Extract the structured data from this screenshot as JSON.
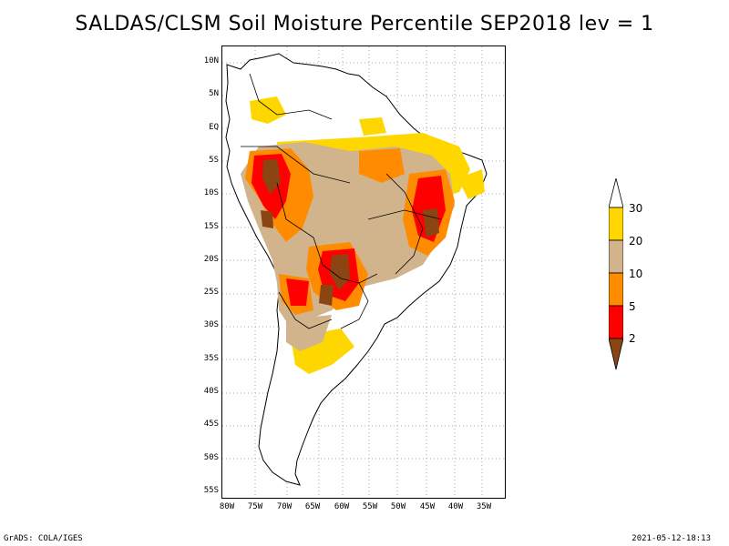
{
  "title": "SALDAS/CLSM Soil Moisture Percentile SEP2018 lev = 1",
  "footer": {
    "left": "GrADS: COLA/IGES",
    "right": "2021-05-12-18:13"
  },
  "map": {
    "lat_labels": [
      "10N",
      "5N",
      "EQ",
      "5S",
      "10S",
      "15S",
      "20S",
      "25S",
      "30S",
      "35S",
      "40S",
      "45S",
      "50S",
      "55S"
    ],
    "lon_labels": [
      "80W",
      "75W",
      "70W",
      "65W",
      "60W",
      "55W",
      "50W",
      "45W",
      "40W",
      "35W"
    ]
  },
  "legend": {
    "labels": [
      "30",
      "20",
      "10",
      "5",
      "2"
    ],
    "colors": {
      "above30": "#ffffff",
      "c20_30": "#ffd700",
      "c10_20": "#d2b48c",
      "c5_10": "#ff8c00",
      "c2_5": "#ff0000",
      "below2": "#8b4513"
    }
  }
}
